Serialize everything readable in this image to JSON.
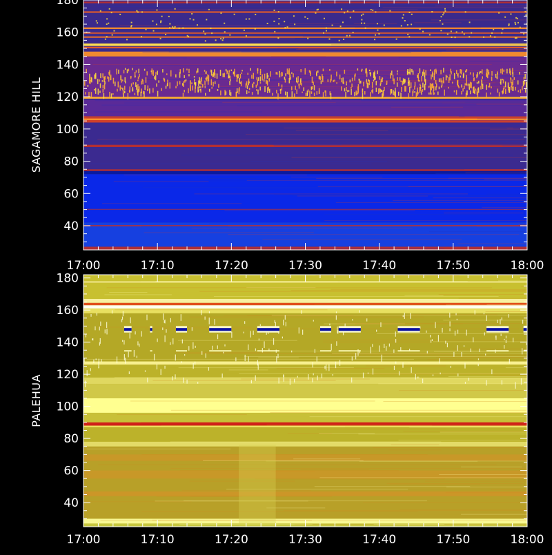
{
  "chart_data": [
    {
      "type": "heatmap",
      "panel": "top",
      "ylabel": "SAGAMORE HILL",
      "xlim": [
        "17:00",
        "18:00"
      ],
      "ylim": [
        25,
        180
      ],
      "x_ticks": [
        "17:00",
        "17:10",
        "17:20",
        "17:30",
        "17:40",
        "17:50",
        "18:00"
      ],
      "x_tick_minutes": [
        0,
        10,
        20,
        30,
        40,
        50,
        60
      ],
      "y_ticks": [
        40,
        60,
        80,
        100,
        120,
        140,
        160,
        180
      ],
      "colors": {
        "background": "#3a2a8c",
        "low": "#0a1ee0",
        "mid": "#c23a3a",
        "high": "#ffe040"
      },
      "bands": [
        {
          "y0": 25,
          "y1": 27,
          "color": "#c0302a",
          "opacity": 0.9
        },
        {
          "y0": 27,
          "y1": 42,
          "color": "#1640e0",
          "opacity": 1
        },
        {
          "y0": 39.6,
          "y1": 40.4,
          "color": "#c0302a",
          "opacity": 0.8
        },
        {
          "y0": 42,
          "y1": 72,
          "color": "#0a28e8",
          "opacity": 1
        },
        {
          "y0": 49.8,
          "y1": 50.4,
          "color": "#c0302a",
          "opacity": 0.6
        },
        {
          "y0": 72,
          "y1": 74,
          "color": "#0a1aa0",
          "opacity": 1
        },
        {
          "y0": 74,
          "y1": 75,
          "color": "#c0302a",
          "opacity": 1
        },
        {
          "y0": 75,
          "y1": 104,
          "color": "#3b2a90",
          "opacity": 1
        },
        {
          "y0": 88.8,
          "y1": 90.2,
          "color": "#c0302a",
          "opacity": 0.9
        },
        {
          "y0": 104,
          "y1": 108,
          "color": "#d0402a",
          "opacity": 1
        },
        {
          "y0": 105.5,
          "y1": 106.5,
          "color": "#ff9a30",
          "opacity": 0.9
        },
        {
          "y0": 108,
          "y1": 118,
          "color": "#5a2a98",
          "opacity": 1
        },
        {
          "y0": 118.8,
          "y1": 120,
          "color": "#ffb030",
          "opacity": 1
        },
        {
          "y0": 120,
          "y1": 145,
          "color": "#6a2a90",
          "opacity": 1
        },
        {
          "y0": 145,
          "y1": 148,
          "color": "#f08a30",
          "opacity": 1
        },
        {
          "y0": 150,
          "y1": 151,
          "color": "#e05a2a",
          "opacity": 1
        },
        {
          "y0": 151.5,
          "y1": 153,
          "color": "#ffe050",
          "opacity": 1
        },
        {
          "y0": 156.5,
          "y1": 157.5,
          "color": "#e06a2a",
          "opacity": 0.9
        },
        {
          "y0": 159,
          "y1": 160,
          "color": "#e05a2a",
          "opacity": 0.8
        },
        {
          "y0": 162,
          "y1": 163,
          "color": "#f08a30",
          "opacity": 1
        },
        {
          "y0": 172,
          "y1": 173,
          "color": "#e05a2a",
          "opacity": 0.9
        },
        {
          "y0": 178,
          "y1": 179,
          "color": "#c0302a",
          "opacity": 0.9
        }
      ],
      "speckle_region": [
        122,
        138
      ],
      "speckle_color": "#ffb030"
    },
    {
      "type": "heatmap",
      "panel": "bottom",
      "ylabel": "PALEHUA",
      "xlim": [
        "17:00",
        "18:00"
      ],
      "ylim": [
        25,
        182
      ],
      "x_ticks": [
        "17:00",
        "17:10",
        "17:20",
        "17:30",
        "17:40",
        "17:50",
        "18:00"
      ],
      "x_tick_minutes": [
        0,
        10,
        20,
        30,
        40,
        50,
        60
      ],
      "y_ticks": [
        40,
        60,
        80,
        100,
        120,
        140,
        160,
        180
      ],
      "colors": {
        "background": "#b8b020",
        "low": "#a09820",
        "mid": "#d08a20",
        "high": "#fff8a0"
      },
      "bands": [
        {
          "y0": 25,
          "y1": 27,
          "color": "#c8c840",
          "opacity": 1
        },
        {
          "y0": 27,
          "y1": 30,
          "color": "#ffffa0",
          "opacity": 0.9
        },
        {
          "y0": 30,
          "y1": 75,
          "color": "#b8a028",
          "opacity": 1
        },
        {
          "y0": 44,
          "y1": 47,
          "color": "#d89028",
          "opacity": 0.6
        },
        {
          "y0": 55,
          "y1": 60,
          "color": "#d89028",
          "opacity": 0.5
        },
        {
          "y0": 66,
          "y1": 70,
          "color": "#d89028",
          "opacity": 0.5
        },
        {
          "y0": 75,
          "y1": 78,
          "color": "#e8e070",
          "opacity": 0.9
        },
        {
          "y0": 78,
          "y1": 87,
          "color": "#bcb22a",
          "opacity": 1
        },
        {
          "y0": 87,
          "y1": 88,
          "color": "#f0e060",
          "opacity": 1
        },
        {
          "y0": 88,
          "y1": 90,
          "color": "#d0201a",
          "opacity": 1
        },
        {
          "y0": 90,
          "y1": 96,
          "color": "#c8c038",
          "opacity": 1
        },
        {
          "y0": 96,
          "y1": 105,
          "color": "#ffff90",
          "opacity": 1
        },
        {
          "y0": 105,
          "y1": 114,
          "color": "#d0c848",
          "opacity": 1
        },
        {
          "y0": 114,
          "y1": 118,
          "color": "#e0d860",
          "opacity": 1
        },
        {
          "y0": 118,
          "y1": 128,
          "color": "#bcb22a",
          "opacity": 1
        },
        {
          "y0": 126,
          "y1": 128,
          "color": "#f8f090",
          "opacity": 1
        },
        {
          "y0": 128,
          "y1": 158,
          "color": "#b4a826",
          "opacity": 1
        },
        {
          "y0": 158,
          "y1": 161,
          "color": "#e8e060",
          "opacity": 1
        },
        {
          "y0": 161,
          "y1": 163,
          "color": "#fffff0",
          "opacity": 1
        },
        {
          "y0": 163,
          "y1": 164.5,
          "color": "#e0501a",
          "opacity": 1
        },
        {
          "y0": 164.5,
          "y1": 167,
          "color": "#f8f0a0",
          "opacity": 1
        },
        {
          "y0": 167,
          "y1": 182,
          "color": "#c8c030",
          "opacity": 1
        },
        {
          "y0": 177,
          "y1": 178,
          "color": "#f8f0a0",
          "opacity": 0.7
        }
      ],
      "dash_events": [
        {
          "x0": 5.5,
          "x1": 6.5
        },
        {
          "x0": 9.0,
          "x1": 9.3
        },
        {
          "x0": 12.5,
          "x1": 14.0
        },
        {
          "x0": 17.0,
          "x1": 20.0
        },
        {
          "x0": 23.5,
          "x1": 26.5
        },
        {
          "x0": 32.0,
          "x1": 33.5
        },
        {
          "x0": 34.5,
          "x1": 37.5
        },
        {
          "x0": 42.5,
          "x1": 45.5
        },
        {
          "x0": 54.5,
          "x1": 57.5
        },
        {
          "x0": 59.5,
          "x1": 61.5
        }
      ],
      "dash_y": [
        146,
        150
      ],
      "dash_colors": [
        "#ffffd0",
        "#0a10a0"
      ]
    }
  ]
}
